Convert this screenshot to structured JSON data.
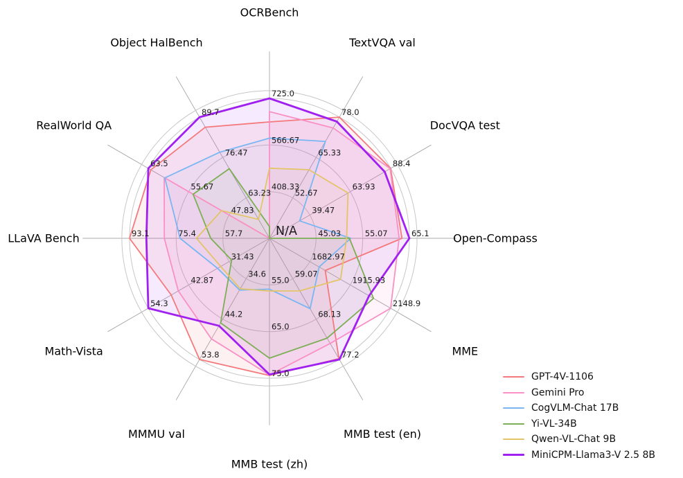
{
  "chart_data": {
    "type": "radar",
    "center_label": "N/A",
    "grid": {
      "ring_fractions": [
        0.3333,
        0.6667,
        1.0
      ],
      "spine_color": "#c6c6c6",
      "spoke_color": "#a8a8a8"
    },
    "legend_position": "lower-right",
    "axes": [
      {
        "label": "OCRBench",
        "center_value": 250,
        "ticks": [
          {
            "value": 725.0,
            "label": "725.0"
          },
          {
            "value": 566.67,
            "label": "566.67"
          },
          {
            "value": 408.33,
            "label": "408.33"
          }
        ]
      },
      {
        "label": "TextVQA val",
        "center_value": 40,
        "ticks": [
          {
            "value": 78.0,
            "label": "78.0"
          },
          {
            "value": 65.33,
            "label": "65.33"
          },
          {
            "value": 52.67,
            "label": "52.67"
          }
        ]
      },
      {
        "label": "DocVQA test",
        "center_value": 15,
        "ticks": [
          {
            "value": 88.4,
            "label": "88.4"
          },
          {
            "value": 63.93,
            "label": "63.93"
          },
          {
            "value": 39.47,
            "label": "39.47"
          }
        ]
      },
      {
        "label": "Open-Compass",
        "center_value": 35,
        "ticks": [
          {
            "value": 65.1,
            "label": "65.1"
          },
          {
            "value": 55.07,
            "label": "55.07"
          },
          {
            "value": 45.03,
            "label": "45.03"
          }
        ]
      },
      {
        "label": "MME",
        "center_value": 1450,
        "ticks": [
          {
            "value": 2148.9,
            "label": "2148.9"
          },
          {
            "value": 1915.93,
            "label": "1915.93"
          },
          {
            "value": 1682.97,
            "label": "1682.97"
          }
        ]
      },
      {
        "label": "MMB test (en)",
        "center_value": 50,
        "ticks": [
          {
            "value": 77.2,
            "label": "77.2"
          },
          {
            "value": 68.13,
            "label": "68.13"
          },
          {
            "value": 59.07,
            "label": "59.07"
          }
        ]
      },
      {
        "label": "MMB test (zh)",
        "center_value": 45,
        "ticks": [
          {
            "value": 75.0,
            "label": "75.0"
          },
          {
            "value": 65.0,
            "label": "65.0"
          },
          {
            "value": 55.0,
            "label": "55.0"
          }
        ]
      },
      {
        "label": "MMMU val",
        "center_value": 25,
        "ticks": [
          {
            "value": 53.8,
            "label": "53.8"
          },
          {
            "value": 44.2,
            "label": "44.2"
          },
          {
            "value": 34.6,
            "label": "34.6"
          }
        ]
      },
      {
        "label": "Math-Vista",
        "center_value": 20,
        "ticks": [
          {
            "value": 54.3,
            "label": "54.3"
          },
          {
            "value": 42.87,
            "label": "42.87"
          },
          {
            "value": 31.43,
            "label": "31.43"
          }
        ]
      },
      {
        "label": "LLaVA Bench",
        "center_value": 40,
        "ticks": [
          {
            "value": 93.1,
            "label": "93.1"
          },
          {
            "value": 75.4,
            "label": "75.4"
          },
          {
            "value": 57.7,
            "label": "57.7"
          }
        ]
      },
      {
        "label": "RealWorld QA",
        "center_value": 40,
        "ticks": [
          {
            "value": 63.5,
            "label": "63.5"
          },
          {
            "value": 55.67,
            "label": "55.67"
          },
          {
            "value": 47.83,
            "label": "47.83"
          }
        ]
      },
      {
        "label": "Object HalBench",
        "center_value": 50,
        "ticks": [
          {
            "value": 89.7,
            "label": "89.7"
          },
          {
            "value": 76.47,
            "label": "76.47"
          },
          {
            "value": 63.23,
            "label": "63.23"
          }
        ]
      }
    ],
    "series": [
      {
        "name": "GPT-4V-1106",
        "color": "#f4797b",
        "line_width": 1.8,
        "fill_opacity": 0.1,
        "values": [
          645,
          78.0,
          88.4,
          63.5,
          1771.5,
          77.0,
          74.4,
          53.8,
          47.8,
          93.1,
          63.0,
          86.4
        ]
      },
      {
        "name": "Gemini Pro",
        "color": "#f990c5",
        "line_width": 1.8,
        "fill_opacity": 0.1,
        "values": [
          680,
          74.6,
          88.1,
          62.9,
          2148.9,
          73.6,
          74.3,
          48.9,
          45.8,
          79.9,
          60.4,
          null
        ]
      },
      {
        "name": "CogVLM-Chat 17B",
        "color": "#79b6f2",
        "line_width": 1.8,
        "fill_opacity": 0.06,
        "values": [
          590,
          70.4,
          33.3,
          52.5,
          1736.6,
          65.8,
          55.9,
          37.3,
          34.7,
          73.9,
          60.3,
          78.2
        ]
      },
      {
        "name": "Yi-VL-34B",
        "color": "#7cae55",
        "line_width": 1.8,
        "fill_opacity": 0.06,
        "values": [
          290,
          null,
          null,
          52.2,
          2050.2,
          72.4,
          70.7,
          45.1,
          30.7,
          62.3,
          54.8,
          72.8
        ]
      },
      {
        "name": "Qwen-VL-Chat 9B",
        "color": "#e3c468",
        "line_width": 1.8,
        "fill_opacity": 0.06,
        "values": [
          488,
          61.5,
          62.6,
          51.6,
          1860.0,
          61.8,
          56.3,
          37.0,
          33.8,
          67.7,
          49.3,
          56.2
        ]
      },
      {
        "name": "MiniCPM-Llama3-V 2.5 8B",
        "color": "#a020f0",
        "line_width": 2.8,
        "fill_opacity": 0.09,
        "values": [
          725,
          76.6,
          84.8,
          65.1,
          2024.6,
          77.2,
          74.2,
          45.8,
          54.3,
          86.7,
          63.5,
          89.7
        ]
      }
    ]
  }
}
